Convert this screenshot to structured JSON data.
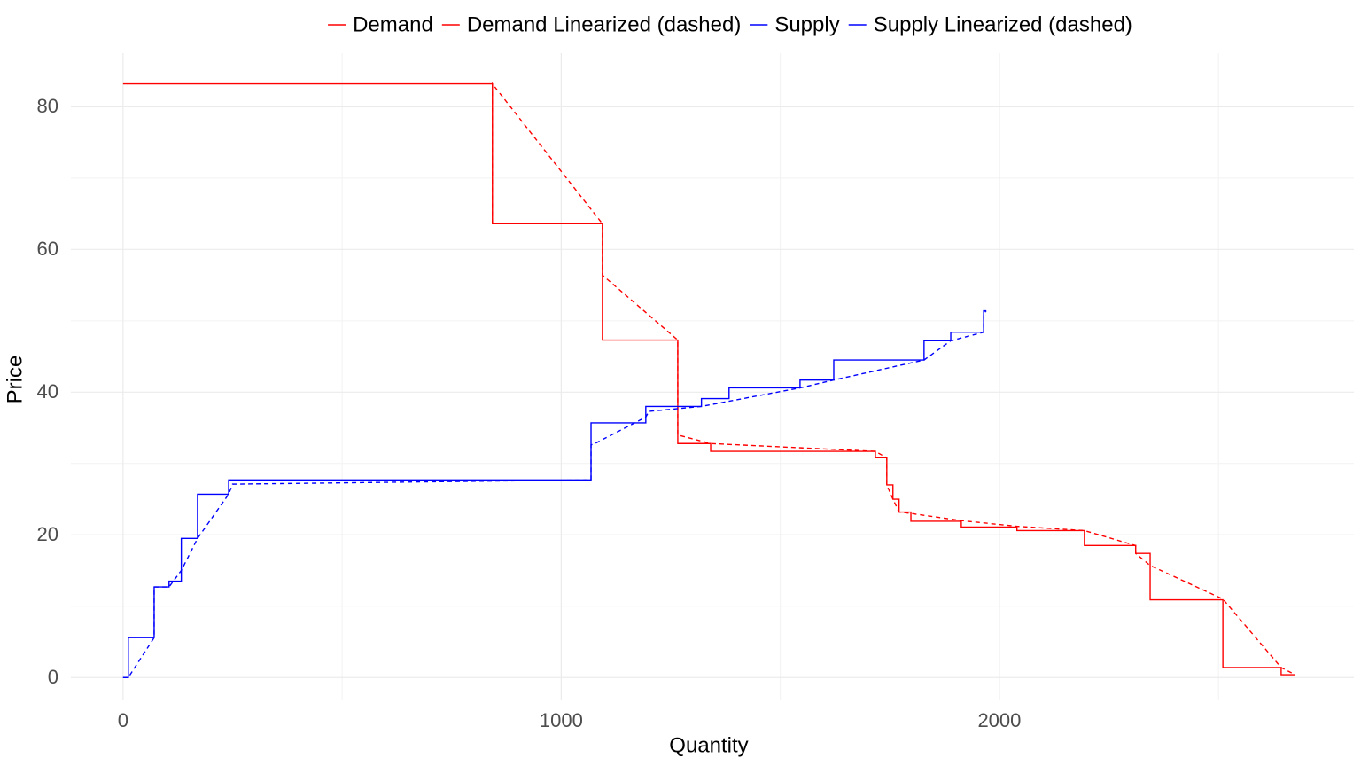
{
  "chart_data": {
    "type": "line",
    "x_label": "Quantity",
    "y_label": "Price",
    "xlim": [
      -119,
      2809
    ],
    "ylim": [
      -3.2,
      87.5
    ],
    "xticks": [
      0,
      1000,
      2000
    ],
    "yticks": [
      0,
      20,
      40,
      60,
      80
    ],
    "xminor": [
      500,
      1500,
      2500
    ],
    "yminor": [
      10,
      30,
      50,
      70
    ],
    "grid": true,
    "legend": "top",
    "series": [
      {
        "name": "Demand",
        "color": "#ff0000",
        "dashed": false,
        "x": [
          0,
          843,
          843,
          1094,
          1094,
          1266,
          1266,
          1341,
          1341,
          1717,
          1717,
          1743,
          1743,
          1757,
          1757,
          1771,
          1771,
          1798,
          1798,
          1913,
          1913,
          2040,
          2040,
          2194,
          2194,
          2311,
          2311,
          2344,
          2344,
          2510,
          2510,
          2643,
          2643,
          2675
        ],
        "values": [
          83.2,
          83.2,
          63.6,
          63.6,
          47.3,
          47.3,
          32.8,
          32.8,
          31.7,
          31.7,
          30.8,
          30.8,
          27.0,
          27.0,
          25.0,
          25.0,
          23.2,
          23.2,
          21.9,
          21.9,
          21.1,
          21.1,
          20.6,
          20.6,
          18.5,
          18.5,
          17.4,
          17.4,
          10.9,
          10.9,
          1.4,
          1.4,
          0.4,
          0.4
        ]
      },
      {
        "name": "Demand Linearized (dashed)",
        "color": "#ff0000",
        "dashed": true,
        "x": [
          843,
          843,
          843,
          1094,
          1094,
          1266,
          1266,
          1341,
          1717,
          1743,
          1743,
          1757,
          1771,
          1798,
          1913,
          2040,
          2194,
          2311,
          2311,
          2344,
          2510,
          2643,
          2675
        ],
        "values": [
          63.6,
          83.2,
          83.2,
          63.6,
          56.4,
          47.3,
          34.0,
          32.8,
          31.7,
          30.8,
          27.0,
          25.0,
          23.2,
          23.0,
          22.0,
          21.2,
          20.6,
          18.5,
          17.4,
          15.7,
          11.0,
          1.4,
          0.4
        ]
      },
      {
        "name": "Supply",
        "color": "#0000ff",
        "dashed": false,
        "x": [
          0,
          12,
          12,
          71,
          71,
          105,
          105,
          133,
          133,
          170,
          170,
          241,
          241,
          1068,
          1068,
          1193,
          1193,
          1320,
          1320,
          1383,
          1383,
          1545,
          1545,
          1622,
          1622,
          1828,
          1828,
          1889,
          1889,
          1964,
          1964,
          1970
        ],
        "values": [
          0,
          0,
          5.6,
          5.6,
          12.7,
          12.7,
          13.5,
          13.5,
          19.5,
          19.5,
          25.7,
          25.7,
          27.7,
          27.7,
          35.7,
          35.7,
          38.0,
          38.0,
          39.1,
          39.1,
          40.6,
          40.6,
          41.7,
          41.7,
          44.5,
          44.5,
          47.2,
          47.2,
          48.4,
          48.4,
          51.4,
          51.4
        ]
      },
      {
        "name": "Supply Linearized (dashed)",
        "color": "#0000ff",
        "dashed": true,
        "x": [
          0,
          12,
          71,
          71,
          105,
          133,
          170,
          241,
          250,
          1068,
          1068,
          1080,
          1193,
          1200,
          1320,
          1545,
          1622,
          1828,
          1889,
          1964,
          1964,
          1970
        ],
        "values": [
          0,
          0,
          5.6,
          12.7,
          12.7,
          15.0,
          19.5,
          25.7,
          27.1,
          27.7,
          32.6,
          32.9,
          36.5,
          37.3,
          38.0,
          40.6,
          41.7,
          44.5,
          47.2,
          48.4,
          51.0,
          51.4
        ]
      }
    ]
  }
}
